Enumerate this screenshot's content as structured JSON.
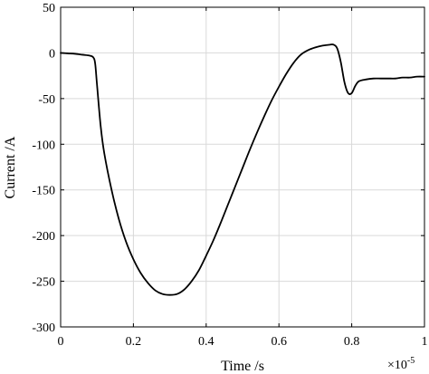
{
  "chart_data": {
    "type": "line",
    "title": "",
    "xlabel": "Time /s",
    "ylabel": "Current /A",
    "x_exponent_label": "×10",
    "x_exponent_power": "-5",
    "xlim": [
      0,
      1
    ],
    "ylim": [
      -300,
      50
    ],
    "xticks": [
      "0",
      "0.2",
      "0.4",
      "0.6",
      "0.8",
      "1"
    ],
    "yticks": [
      "50",
      "0",
      "-50",
      "-100",
      "-150",
      "-200",
      "-250",
      "-300"
    ],
    "xtick_values": [
      0,
      0.2,
      0.4,
      0.6,
      0.8,
      1
    ],
    "ytick_values": [
      50,
      0,
      -50,
      -100,
      -150,
      -200,
      -250,
      -300
    ],
    "grid": true,
    "series": [
      {
        "color": "#000000",
        "x": [
          0,
          0.02,
          0.04,
          0.06,
          0.08,
          0.09,
          0.095,
          0.1,
          0.11,
          0.12,
          0.14,
          0.16,
          0.18,
          0.2,
          0.22,
          0.24,
          0.26,
          0.28,
          0.3,
          0.32,
          0.34,
          0.36,
          0.38,
          0.4,
          0.42,
          0.44,
          0.46,
          0.48,
          0.5,
          0.52,
          0.54,
          0.56,
          0.58,
          0.6,
          0.62,
          0.64,
          0.66,
          0.68,
          0.7,
          0.72,
          0.74,
          0.75,
          0.76,
          0.77,
          0.78,
          0.79,
          0.8,
          0.81,
          0.82,
          0.84,
          0.86,
          0.88,
          0.9,
          0.92,
          0.94,
          0.96,
          0.98,
          1.0
        ],
        "y": [
          0,
          -0.5,
          -1,
          -2,
          -3,
          -5,
          -12,
          -35,
          -80,
          -110,
          -150,
          -182,
          -207,
          -226,
          -241,
          -252,
          -260,
          -264,
          -265,
          -264,
          -259,
          -250,
          -238,
          -222,
          -205,
          -186,
          -166,
          -146,
          -126,
          -106,
          -87,
          -69,
          -52,
          -37,
          -23,
          -11,
          -2,
          3,
          6,
          8,
          9,
          9,
          5,
          -10,
          -32,
          -44,
          -44,
          -36,
          -31,
          -29,
          -28,
          -28,
          -28,
          -28,
          -27,
          -27,
          -26,
          -26
        ]
      }
    ]
  }
}
